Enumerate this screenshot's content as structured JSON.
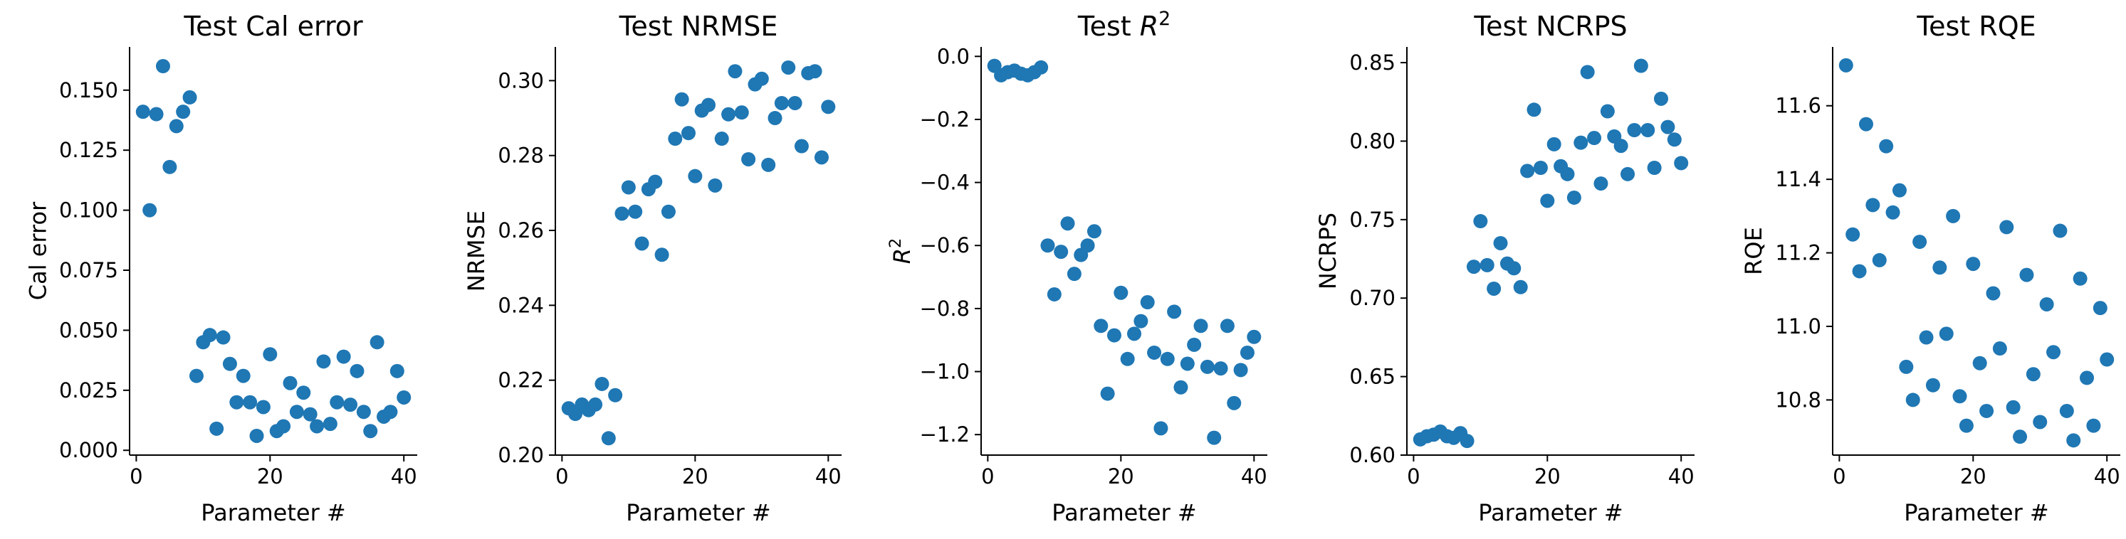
{
  "figure": {
    "marker_color": "#1f77b4"
  },
  "chart_data": [
    {
      "type": "scatter",
      "title": "Test Cal error",
      "xlabel": "Parameter #",
      "ylabel": "Cal error",
      "xlim": [
        -1,
        42
      ],
      "ylim": [
        -0.002,
        0.168
      ],
      "xticks": [
        0,
        20,
        40
      ],
      "yticks": [
        0.0,
        0.025,
        0.05,
        0.075,
        0.1,
        0.125,
        0.15
      ],
      "xtick_labels": [
        "0",
        "20",
        "40"
      ],
      "ytick_labels": [
        "0.000",
        "0.025",
        "0.050",
        "0.075",
        "0.100",
        "0.125",
        "0.150"
      ],
      "grid": false,
      "x": [
        1,
        2,
        3,
        4,
        5,
        6,
        7,
        8,
        9,
        10,
        11,
        12,
        13,
        14,
        15,
        16,
        17,
        18,
        19,
        20,
        21,
        22,
        23,
        24,
        25,
        26,
        27,
        28,
        29,
        30,
        31,
        32,
        33,
        34,
        35,
        36,
        37,
        38,
        39,
        40
      ],
      "y": [
        0.141,
        0.1,
        0.14,
        0.16,
        0.118,
        0.135,
        0.141,
        0.147,
        0.031,
        0.045,
        0.048,
        0.009,
        0.047,
        0.036,
        0.02,
        0.031,
        0.02,
        0.006,
        0.018,
        0.04,
        0.008,
        0.01,
        0.028,
        0.016,
        0.024,
        0.015,
        0.01,
        0.037,
        0.011,
        0.02,
        0.039,
        0.019,
        0.033,
        0.016,
        0.008,
        0.045,
        0.014,
        0.016,
        0.033,
        0.022
      ]
    },
    {
      "type": "scatter",
      "title": "Test NRMSE",
      "xlabel": "Parameter #",
      "ylabel": "NRMSE",
      "xlim": [
        -1,
        42
      ],
      "ylim": [
        0.2,
        0.309
      ],
      "xticks": [
        0,
        20,
        40
      ],
      "yticks": [
        0.2,
        0.22,
        0.24,
        0.26,
        0.28,
        0.3
      ],
      "xtick_labels": [
        "0",
        "20",
        "40"
      ],
      "ytick_labels": [
        "0.20",
        "0.22",
        "0.24",
        "0.26",
        "0.28",
        "0.30"
      ],
      "grid": false,
      "x": [
        1,
        2,
        3,
        4,
        5,
        6,
        7,
        8,
        9,
        10,
        11,
        12,
        13,
        14,
        15,
        16,
        17,
        18,
        19,
        20,
        21,
        22,
        23,
        24,
        25,
        26,
        27,
        28,
        29,
        30,
        31,
        32,
        33,
        34,
        35,
        36,
        37,
        38,
        39,
        40
      ],
      "y": [
        0.2125,
        0.211,
        0.2135,
        0.212,
        0.2135,
        0.219,
        0.2045,
        0.216,
        0.2645,
        0.2715,
        0.265,
        0.2565,
        0.271,
        0.273,
        0.2535,
        0.265,
        0.2845,
        0.295,
        0.286,
        0.2745,
        0.292,
        0.2935,
        0.272,
        0.2845,
        0.291,
        0.3025,
        0.2915,
        0.279,
        0.299,
        0.3005,
        0.2775,
        0.29,
        0.294,
        0.3035,
        0.294,
        0.2825,
        0.302,
        0.3025,
        0.2795,
        0.293
      ]
    },
    {
      "type": "scatter",
      "title": "Test R²",
      "xlabel": "Parameter #",
      "ylabel": "R²",
      "xlim": [
        -1,
        42
      ],
      "ylim": [
        -1.265,
        0.03
      ],
      "xticks": [
        0,
        20,
        40
      ],
      "yticks": [
        0.0,
        -0.2,
        -0.4,
        -0.6,
        -0.8,
        -1.0,
        -1.2
      ],
      "xtick_labels": [
        "0",
        "20",
        "40"
      ],
      "ytick_labels": [
        "0.0",
        "−0.2",
        "−0.4",
        "−0.6",
        "−0.8",
        "−1.0",
        "−1.2"
      ],
      "grid": false,
      "x": [
        1,
        2,
        3,
        4,
        5,
        6,
        7,
        8,
        9,
        10,
        11,
        12,
        13,
        14,
        15,
        16,
        17,
        18,
        19,
        20,
        21,
        22,
        23,
        24,
        25,
        26,
        27,
        28,
        29,
        30,
        31,
        32,
        33,
        34,
        35,
        36,
        37,
        38,
        39,
        40
      ],
      "y": [
        -0.03,
        -0.06,
        -0.05,
        -0.045,
        -0.055,
        -0.06,
        -0.05,
        -0.035,
        -0.6,
        -0.755,
        -0.62,
        -0.53,
        -0.69,
        -0.63,
        -0.6,
        -0.555,
        -0.855,
        -1.07,
        -0.885,
        -0.75,
        -0.96,
        -0.88,
        -0.84,
        -0.78,
        -0.94,
        -1.18,
        -0.96,
        -0.81,
        -1.05,
        -0.975,
        -0.915,
        -0.855,
        -0.985,
        -1.21,
        -0.99,
        -0.855,
        -1.1,
        -0.995,
        -0.94,
        -0.89
      ]
    },
    {
      "type": "scatter",
      "title": "Test NCRPS",
      "xlabel": "Parameter #",
      "ylabel": "NCRPS",
      "xlim": [
        -1,
        42
      ],
      "ylim": [
        0.6,
        0.86
      ],
      "xticks": [
        0,
        20,
        40
      ],
      "yticks": [
        0.6,
        0.65,
        0.7,
        0.75,
        0.8,
        0.85
      ],
      "xtick_labels": [
        "0",
        "20",
        "40"
      ],
      "ytick_labels": [
        "0.60",
        "0.65",
        "0.70",
        "0.75",
        "0.80",
        "0.85"
      ],
      "grid": false,
      "x": [
        1,
        2,
        3,
        4,
        5,
        6,
        7,
        8,
        9,
        10,
        11,
        12,
        13,
        14,
        15,
        16,
        17,
        18,
        19,
        20,
        21,
        22,
        23,
        24,
        25,
        26,
        27,
        28,
        29,
        30,
        31,
        32,
        33,
        34,
        35,
        36,
        37,
        38,
        39,
        40
      ],
      "y": [
        0.61,
        0.612,
        0.613,
        0.615,
        0.612,
        0.611,
        0.614,
        0.609,
        0.72,
        0.749,
        0.721,
        0.706,
        0.735,
        0.722,
        0.719,
        0.707,
        0.781,
        0.82,
        0.783,
        0.762,
        0.798,
        0.784,
        0.779,
        0.764,
        0.799,
        0.844,
        0.802,
        0.773,
        0.819,
        0.803,
        0.797,
        0.779,
        0.807,
        0.848,
        0.807,
        0.783,
        0.827,
        0.809,
        0.801,
        0.786
      ]
    },
    {
      "type": "scatter",
      "title": "Test RQE",
      "xlabel": "Parameter #",
      "ylabel": "RQE",
      "xlim": [
        -1,
        42
      ],
      "ylim": [
        10.65,
        11.76
      ],
      "xticks": [
        0,
        20,
        40
      ],
      "yticks": [
        10.8,
        11.0,
        11.2,
        11.4,
        11.6
      ],
      "xtick_labels": [
        "0",
        "20",
        "40"
      ],
      "ytick_labels": [
        "10.8",
        "11.0",
        "11.2",
        "11.4",
        "11.6"
      ],
      "grid": false,
      "x": [
        1,
        2,
        3,
        4,
        5,
        6,
        7,
        8,
        9,
        10,
        11,
        12,
        13,
        14,
        15,
        16,
        17,
        18,
        19,
        20,
        21,
        22,
        23,
        24,
        25,
        26,
        27,
        28,
        29,
        30,
        31,
        32,
        33,
        34,
        35,
        36,
        37,
        38,
        39,
        40
      ],
      "y": [
        11.71,
        11.25,
        11.15,
        11.55,
        11.33,
        11.18,
        11.49,
        11.31,
        11.37,
        10.89,
        10.8,
        11.23,
        10.97,
        10.84,
        11.16,
        10.98,
        11.3,
        10.81,
        10.73,
        11.17,
        10.9,
        10.77,
        11.09,
        10.94,
        11.27,
        10.78,
        10.7,
        11.14,
        10.87,
        10.74,
        11.06,
        10.93,
        11.26,
        10.77,
        10.69,
        11.13,
        10.86,
        10.73,
        11.05,
        10.91
      ]
    }
  ]
}
